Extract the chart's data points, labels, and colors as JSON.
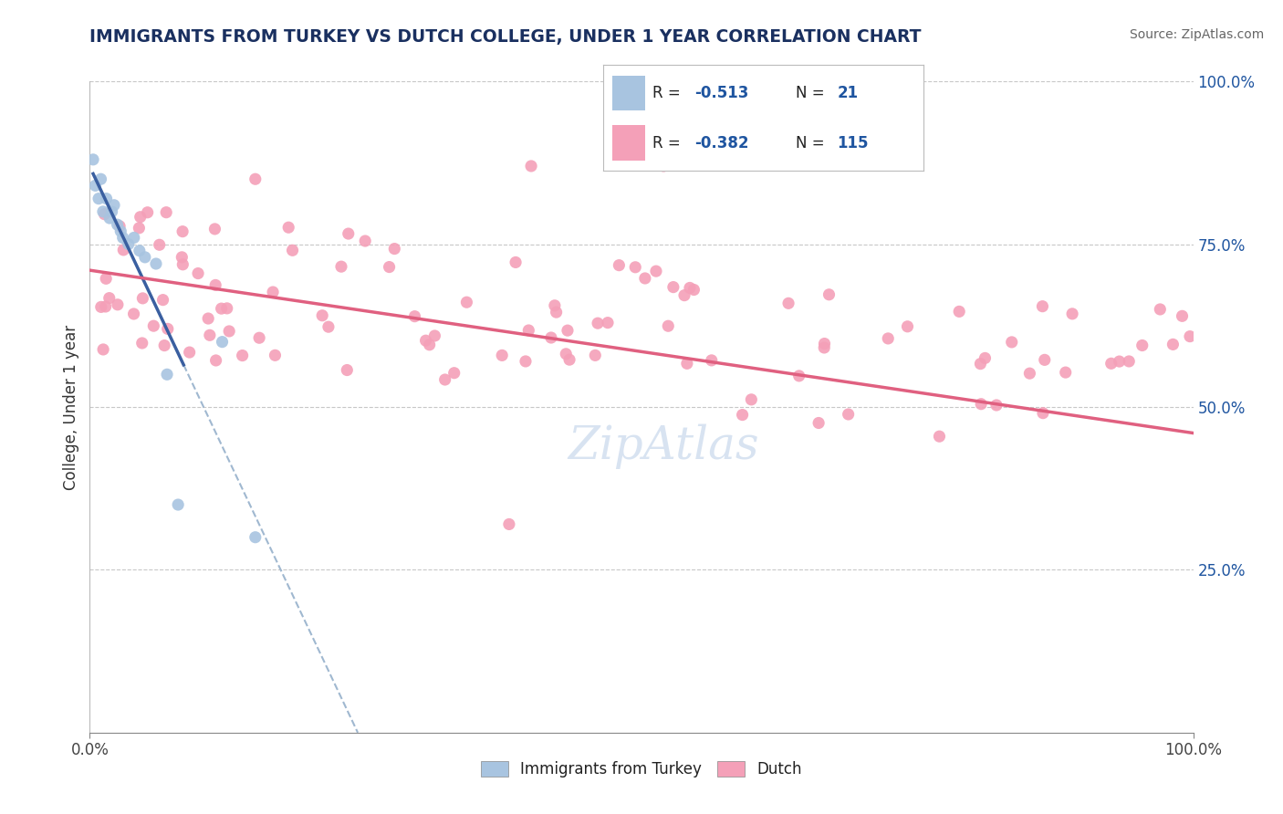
{
  "title": "IMMIGRANTS FROM TURKEY VS DUTCH COLLEGE, UNDER 1 YEAR CORRELATION CHART",
  "source": "Source: ZipAtlas.com",
  "ylabel": "College, Under 1 year",
  "legend_r1": "R = -0.513",
  "legend_n1": "N =  21",
  "legend_r2": "R = -0.382",
  "legend_n2": "N = 115",
  "blue_color": "#a8c4e0",
  "pink_color": "#f4a0b8",
  "blue_line_color": "#3a5fa0",
  "pink_line_color": "#e06080",
  "dashed_line_color": "#a0b8d0",
  "title_color": "#1a3060",
  "stat_color": "#1f55a0",
  "label_color": "#222222",
  "right_tick_color": "#1f55a0",
  "background_color": "#ffffff",
  "watermark_color": "#c8d8ec",
  "xlim": [
    0,
    100
  ],
  "ylim": [
    0,
    100
  ],
  "grid_color": "#c8c8c8",
  "blue_scatter_x": [
    0.3,
    0.5,
    0.8,
    1.0,
    1.2,
    1.5,
    1.8,
    2.0,
    2.2,
    2.5,
    2.8,
    3.0,
    3.5,
    4.0,
    4.5,
    5.0,
    6.0,
    7.0,
    8.0,
    12.0,
    15.0
  ],
  "blue_scatter_y": [
    88,
    84,
    82,
    85,
    80,
    82,
    79,
    80,
    81,
    78,
    77,
    76,
    75,
    76,
    74,
    73,
    72,
    55,
    35,
    60,
    30
  ],
  "pink_line_x0": 0,
  "pink_line_y0": 71,
  "pink_line_x1": 100,
  "pink_line_y1": 46,
  "blue_line_x0": 0.3,
  "blue_line_y0": 83,
  "blue_line_x1": 8.5,
  "blue_line_y1": 54
}
